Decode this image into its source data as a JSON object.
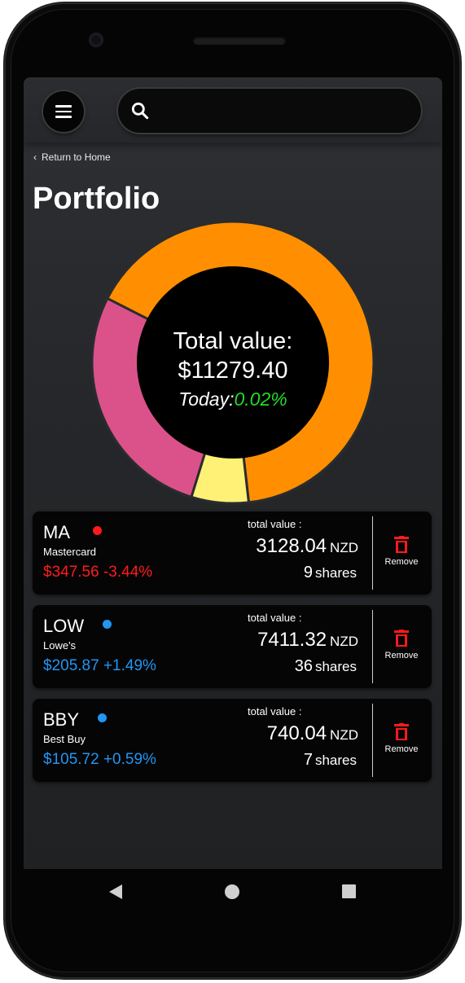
{
  "header": {
    "back_label": "Return to Home",
    "title": "Portfolio"
  },
  "summary": {
    "total_label": "Total value:",
    "total_value": "$11279.40",
    "today_label": "Today:",
    "today_change": "0.02%",
    "today_color": "#22dd22"
  },
  "chart_data": {
    "type": "pie",
    "categories": [
      "LOW",
      "BBY",
      "MA"
    ],
    "values": [
      7411.32,
      740.04,
      3128.04
    ],
    "colors": [
      "#ff8f00",
      "#fff176",
      "#db528b"
    ]
  },
  "stocks": [
    {
      "ticker": "MA",
      "company": "Mastercard",
      "price_change": "$347.56 -3.44%",
      "color": "#ff1a1a",
      "total_label": "total value :",
      "total_value": "3128.04",
      "currency": "NZD",
      "shares_count": "9",
      "shares_label": "shares",
      "remove_label": "Remove"
    },
    {
      "ticker": "LOW",
      "company": "Lowe's",
      "price_change": "$205.87 +1.49%",
      "color": "#2196f3",
      "total_label": "total value :",
      "total_value": "7411.32",
      "currency": "NZD",
      "shares_count": "36",
      "shares_label": "shares",
      "remove_label": "Remove"
    },
    {
      "ticker": "BBY",
      "company": "Best Buy",
      "price_change": "$105.72 +0.59%",
      "color": "#2196f3",
      "total_label": "total value :",
      "total_value": "740.04",
      "currency": "NZD",
      "shares_count": "7",
      "shares_label": "shares",
      "remove_label": "Remove"
    }
  ],
  "icons": {
    "menu": "menu-icon",
    "search": "search-icon",
    "back": "chevron-left-icon",
    "remove": "trash-icon",
    "nav_back": "triangle-back-icon",
    "nav_home": "circle-home-icon",
    "nav_recent": "square-recent-icon"
  }
}
